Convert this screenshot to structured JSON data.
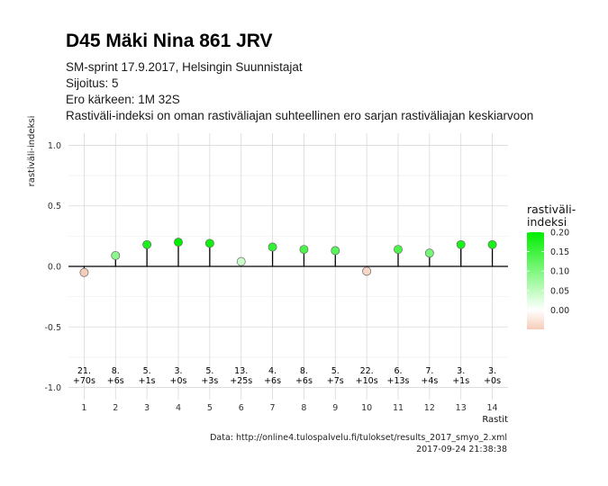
{
  "header": {
    "title": "D45 Mäki Nina 861 JRV",
    "subtitle_lines": [
      "SM-sprint 17.9.2017, Helsingin Suunnistajat",
      "Sijoitus: 5",
      "Ero kärkeen: 1M 32S",
      "Rastiväli-indeksi on oman rastiväliajan suhteellinen ero sarjan rastiväliajan keskiarvoon"
    ]
  },
  "caption": {
    "source": "Data: http://online4.tulospalvelu.fi/tulokset/results_2017_smyo_2.xml",
    "timestamp": "2017-09-24 21:38:38"
  },
  "legend": {
    "title_lines": [
      "rastiväli-",
      "indeksi"
    ],
    "ticks": [
      "0.20",
      "0.15",
      "0.10",
      "0.05",
      "0.00"
    ],
    "tick_values": [
      0.2,
      0.15,
      0.1,
      0.05,
      0.0
    ],
    "range": [
      -0.05,
      0.2
    ],
    "color_low": "#f6cdb8",
    "color_mid": "#ffffff",
    "color_high": "#00ee00"
  },
  "chart_data": {
    "type": "scatter",
    "style": "lollipop",
    "xlabel": "Rastit",
    "ylabel": "rastiväli-indeksi",
    "ylim": [
      -1.0,
      1.0
    ],
    "yticks": [
      "1.0",
      "0.5",
      "0.0",
      "-0.5",
      "-1.0"
    ],
    "ytick_values": [
      1.0,
      0.5,
      0.0,
      -0.5,
      -1.0
    ],
    "xlim": [
      0.5,
      14.5
    ],
    "grid": true,
    "legend_position": "right",
    "x": [
      1,
      2,
      3,
      4,
      5,
      6,
      7,
      8,
      9,
      10,
      11,
      12,
      13,
      14
    ],
    "y": [
      -0.05,
      0.09,
      0.18,
      0.2,
      0.19,
      0.04,
      0.16,
      0.14,
      0.13,
      -0.04,
      0.14,
      0.11,
      0.18,
      0.18
    ],
    "annotations": [
      {
        "rank": "21.",
        "diff": "+70s"
      },
      {
        "rank": "8.",
        "diff": "+6s"
      },
      {
        "rank": "5.",
        "diff": "+1s"
      },
      {
        "rank": "3.",
        "diff": "+0s"
      },
      {
        "rank": "5.",
        "diff": "+3s"
      },
      {
        "rank": "13.",
        "diff": "+25s"
      },
      {
        "rank": "4.",
        "diff": "+6s"
      },
      {
        "rank": "8.",
        "diff": "+6s"
      },
      {
        "rank": "5.",
        "diff": "+7s"
      },
      {
        "rank": "22.",
        "diff": "+10s"
      },
      {
        "rank": "6.",
        "diff": "+13s"
      },
      {
        "rank": "7.",
        "diff": "+4s"
      },
      {
        "rank": "3.",
        "diff": "+1s"
      },
      {
        "rank": "3.",
        "diff": "+0s"
      }
    ]
  }
}
